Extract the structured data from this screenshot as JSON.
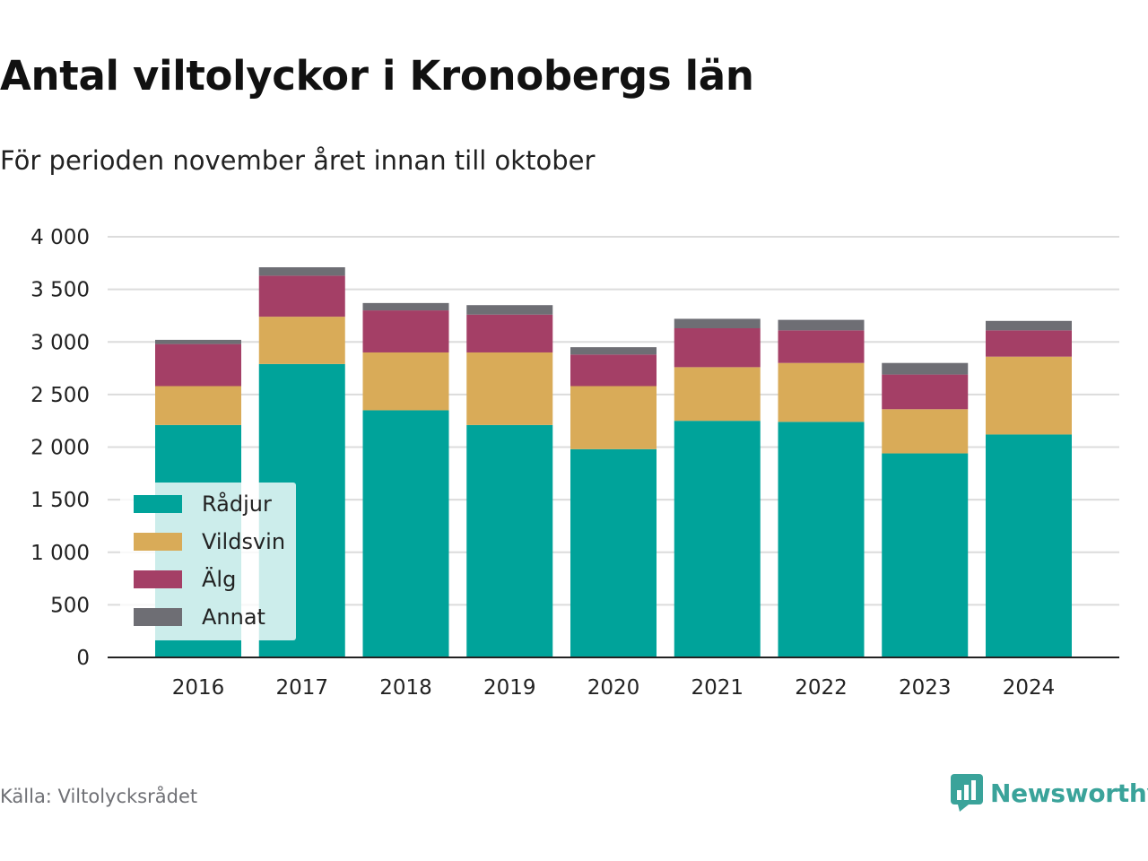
{
  "header": {
    "title": "Antal viltolyckor i Kronobergs län",
    "subtitle": "För perioden november året innan till oktober"
  },
  "footer": {
    "source": "Källa: Viltolycksrådet",
    "brand": "Newsworthy",
    "brand_icon": "bar-chart-bubble-icon",
    "brand_color": "#3aa39a"
  },
  "chart_data": {
    "type": "bar",
    "stacked": true,
    "categories": [
      "2016",
      "2017",
      "2018",
      "2019",
      "2020",
      "2021",
      "2022",
      "2023",
      "2024"
    ],
    "series": [
      {
        "name": "Rådjur",
        "color": "#00a39a",
        "values": [
          2210,
          2790,
          2350,
          2210,
          1980,
          2250,
          2240,
          1940,
          2120
        ]
      },
      {
        "name": "Vildsvin",
        "color": "#d9ab58",
        "values": [
          370,
          450,
          550,
          690,
          600,
          510,
          560,
          420,
          740
        ]
      },
      {
        "name": "Älg",
        "color": "#a43f66",
        "values": [
          400,
          390,
          400,
          360,
          300,
          370,
          310,
          330,
          250
        ]
      },
      {
        "name": "Annat",
        "color": "#6e6e74",
        "values": [
          40,
          80,
          70,
          90,
          70,
          90,
          100,
          110,
          90
        ]
      }
    ],
    "ylim": [
      0,
      4000
    ],
    "yticks": [
      0,
      500,
      1000,
      1500,
      2000,
      2500,
      3000,
      3500,
      4000
    ],
    "ytick_labels": [
      "0",
      "500",
      "1 000",
      "1 500",
      "2 000",
      "2 500",
      "3 000",
      "3 500",
      "4 000"
    ],
    "grid": true,
    "legend_position": "bottom-left",
    "xlabel": "",
    "ylabel": ""
  }
}
